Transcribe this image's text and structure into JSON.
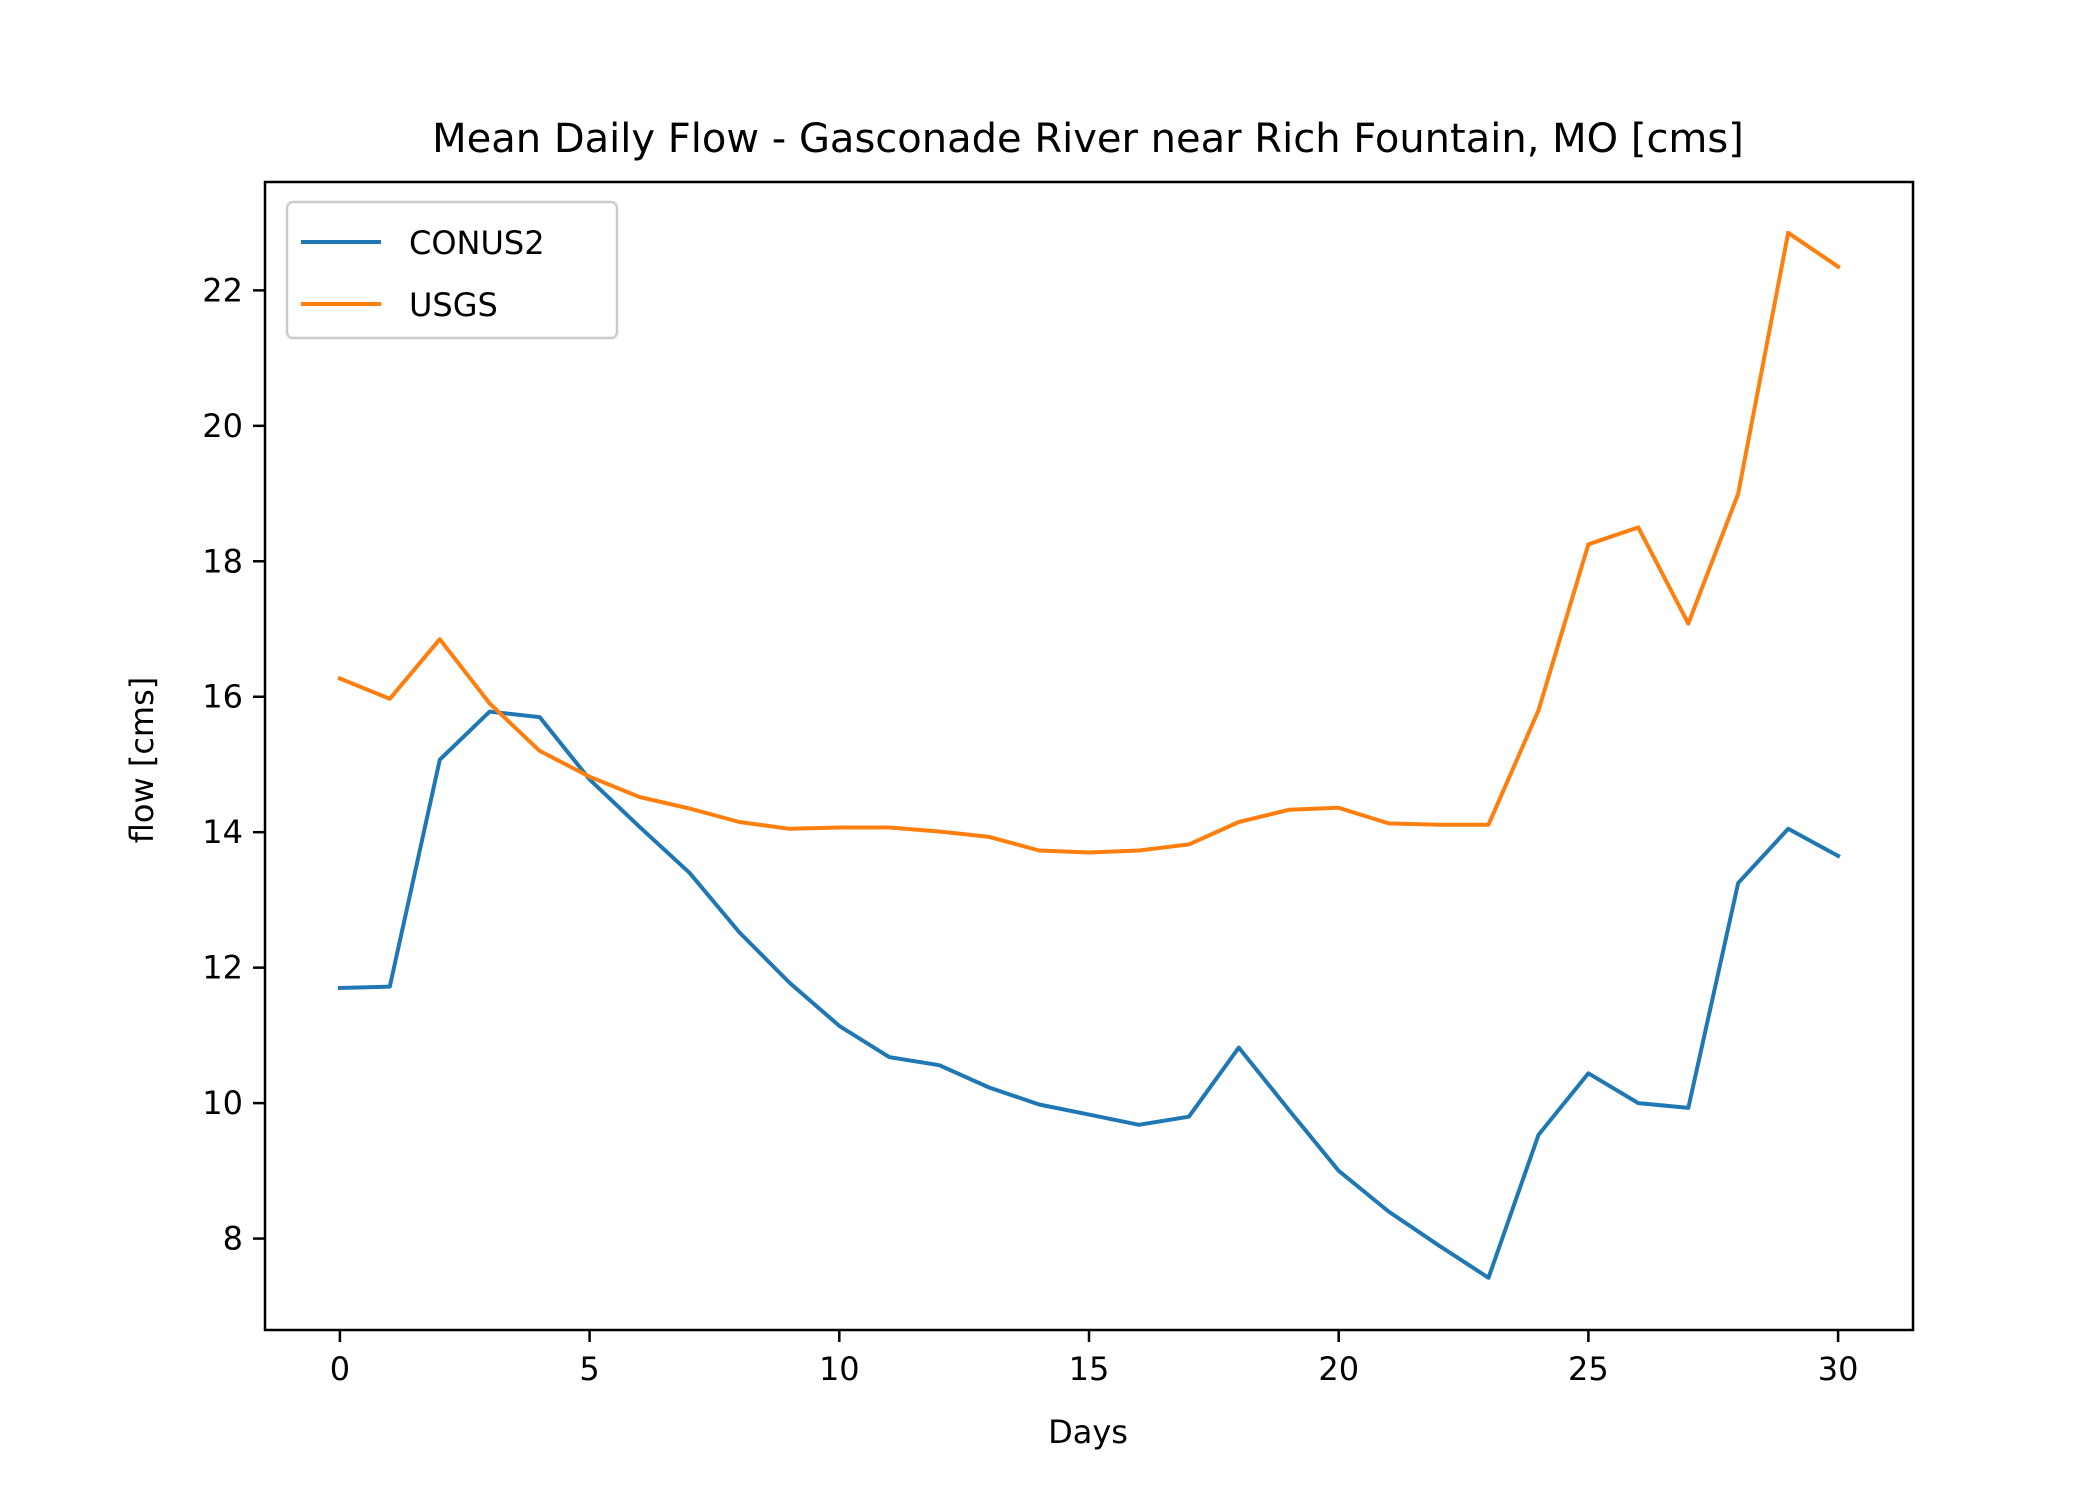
{
  "chart_data": {
    "type": "line",
    "title": "Mean Daily Flow - Gasconade River near Rich Fountain, MO [cms]",
    "xlabel": "Days",
    "ylabel": "flow [cms]",
    "xlim": [
      -1.5,
      31.5
    ],
    "ylim": [
      6.65,
      23.6
    ],
    "xticks": [
      0,
      5,
      10,
      15,
      20,
      25,
      30
    ],
    "yticks": [
      8,
      10,
      12,
      14,
      16,
      18,
      20,
      22
    ],
    "grid": false,
    "legend_position": "top-left",
    "x": [
      0,
      1,
      2,
      3,
      4,
      5,
      6,
      7,
      8,
      9,
      10,
      11,
      12,
      13,
      14,
      15,
      16,
      17,
      18,
      19,
      20,
      21,
      22,
      23,
      24,
      25,
      26,
      27,
      28,
      29,
      30
    ],
    "series": [
      {
        "name": "CONUS2",
        "color": "#1f77b4",
        "values": [
          11.7,
          11.72,
          15.07,
          15.78,
          15.7,
          14.78,
          14.08,
          13.4,
          12.52,
          11.78,
          11.14,
          10.68,
          10.56,
          10.23,
          9.98,
          9.83,
          9.68,
          9.8,
          10.82,
          9.9,
          9.0,
          8.4,
          7.9,
          7.42,
          9.53,
          10.44,
          10.0,
          9.93,
          13.25,
          14.05,
          13.65
        ]
      },
      {
        "name": "USGS",
        "color": "#ff7f0e",
        "values": [
          16.27,
          15.97,
          16.85,
          15.9,
          15.2,
          14.82,
          14.52,
          14.35,
          14.15,
          14.05,
          14.07,
          14.07,
          14.01,
          13.93,
          13.73,
          13.7,
          13.73,
          13.82,
          14.15,
          14.33,
          14.36,
          14.13,
          14.11,
          14.11,
          15.8,
          18.25,
          18.5,
          17.08,
          19.0,
          22.85,
          22.35
        ]
      }
    ]
  }
}
